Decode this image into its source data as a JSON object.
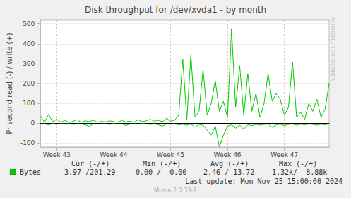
{
  "chart_data": {
    "type": "line",
    "title": "Disk throughput for /dev/xvda1 - by month",
    "y_label": "Pr second read (-) / write (+)",
    "categories": [
      null,
      null,
      null,
      null,
      "Week 43",
      null,
      null,
      null,
      null,
      null,
      null,
      null,
      null,
      null,
      null,
      null,
      null,
      null,
      "Week 44",
      null,
      null,
      null,
      null,
      null,
      null,
      null,
      null,
      null,
      null,
      null,
      null,
      null,
      "Week 45",
      null,
      null,
      null,
      null,
      null,
      null,
      null,
      null,
      null,
      null,
      null,
      null,
      null,
      "Week 46",
      null,
      null,
      null,
      null,
      null,
      null,
      null,
      null,
      null,
      null,
      null,
      null,
      null,
      "Week 47",
      null,
      null,
      null,
      null,
      null,
      null,
      null,
      null,
      null,
      null,
      null
    ],
    "series": [
      {
        "name": "Bytes",
        "color": "#00cc00",
        "values": [
          35,
          5,
          45,
          8,
          20,
          5,
          15,
          3,
          10,
          18,
          5,
          12,
          8,
          15,
          5,
          10,
          6,
          12,
          8,
          5,
          14,
          7,
          10,
          5,
          18,
          8,
          12,
          20,
          10,
          15,
          8,
          25,
          10,
          15,
          40,
          320,
          20,
          345,
          30,
          60,
          270,
          40,
          100,
          215,
          60,
          110,
          30,
          475,
          80,
          290,
          40,
          250,
          60,
          150,
          30,
          100,
          250,
          110,
          150,
          120,
          40,
          80,
          310,
          30,
          55,
          20,
          100,
          60,
          120,
          30,
          70,
          200
        ],
        "read_values": [
          -5,
          -3,
          -8,
          -2,
          -5,
          -3,
          -4,
          -2,
          -6,
          -3,
          -4,
          -8,
          -15,
          -3,
          -5,
          -4,
          -3,
          -6,
          -2,
          -4,
          -3,
          -12,
          -4,
          -3,
          -5,
          -2,
          -4,
          -6,
          -3,
          -8,
          -15,
          -4,
          -5,
          -3,
          -8,
          -5,
          -10,
          -4,
          -20,
          -6,
          -10,
          -35,
          -60,
          -15,
          -120,
          -60,
          -15,
          -8,
          -25,
          -10,
          -30,
          -8,
          -12,
          -5,
          -10,
          -6,
          -4,
          -20,
          -8,
          -5,
          -12,
          -6,
          -4,
          -10,
          -5,
          -8,
          -4,
          -6,
          -10,
          -5,
          -8,
          -3
        ]
      }
    ],
    "ylim": [
      -120,
      520
    ],
    "yticks": [
      -100,
      0,
      100,
      200,
      300,
      400,
      500
    ],
    "grid": true,
    "legend_table": {
      "headers": [
        "Cur (-/+)",
        "Min (-/+)",
        "Avg (-/+)",
        "Max (-/+)"
      ],
      "cells": [
        "3.97 /201.29",
        "0.00 /  0.00",
        "2.46 / 13.72",
        "1.32k/  8.88k"
      ]
    },
    "last_update": "Last update: Mon Nov 25 15:00:00 2024",
    "footer": "Munin 2.0.33-1",
    "side_text": "RRDTOOL / TOBI OETIKER"
  }
}
